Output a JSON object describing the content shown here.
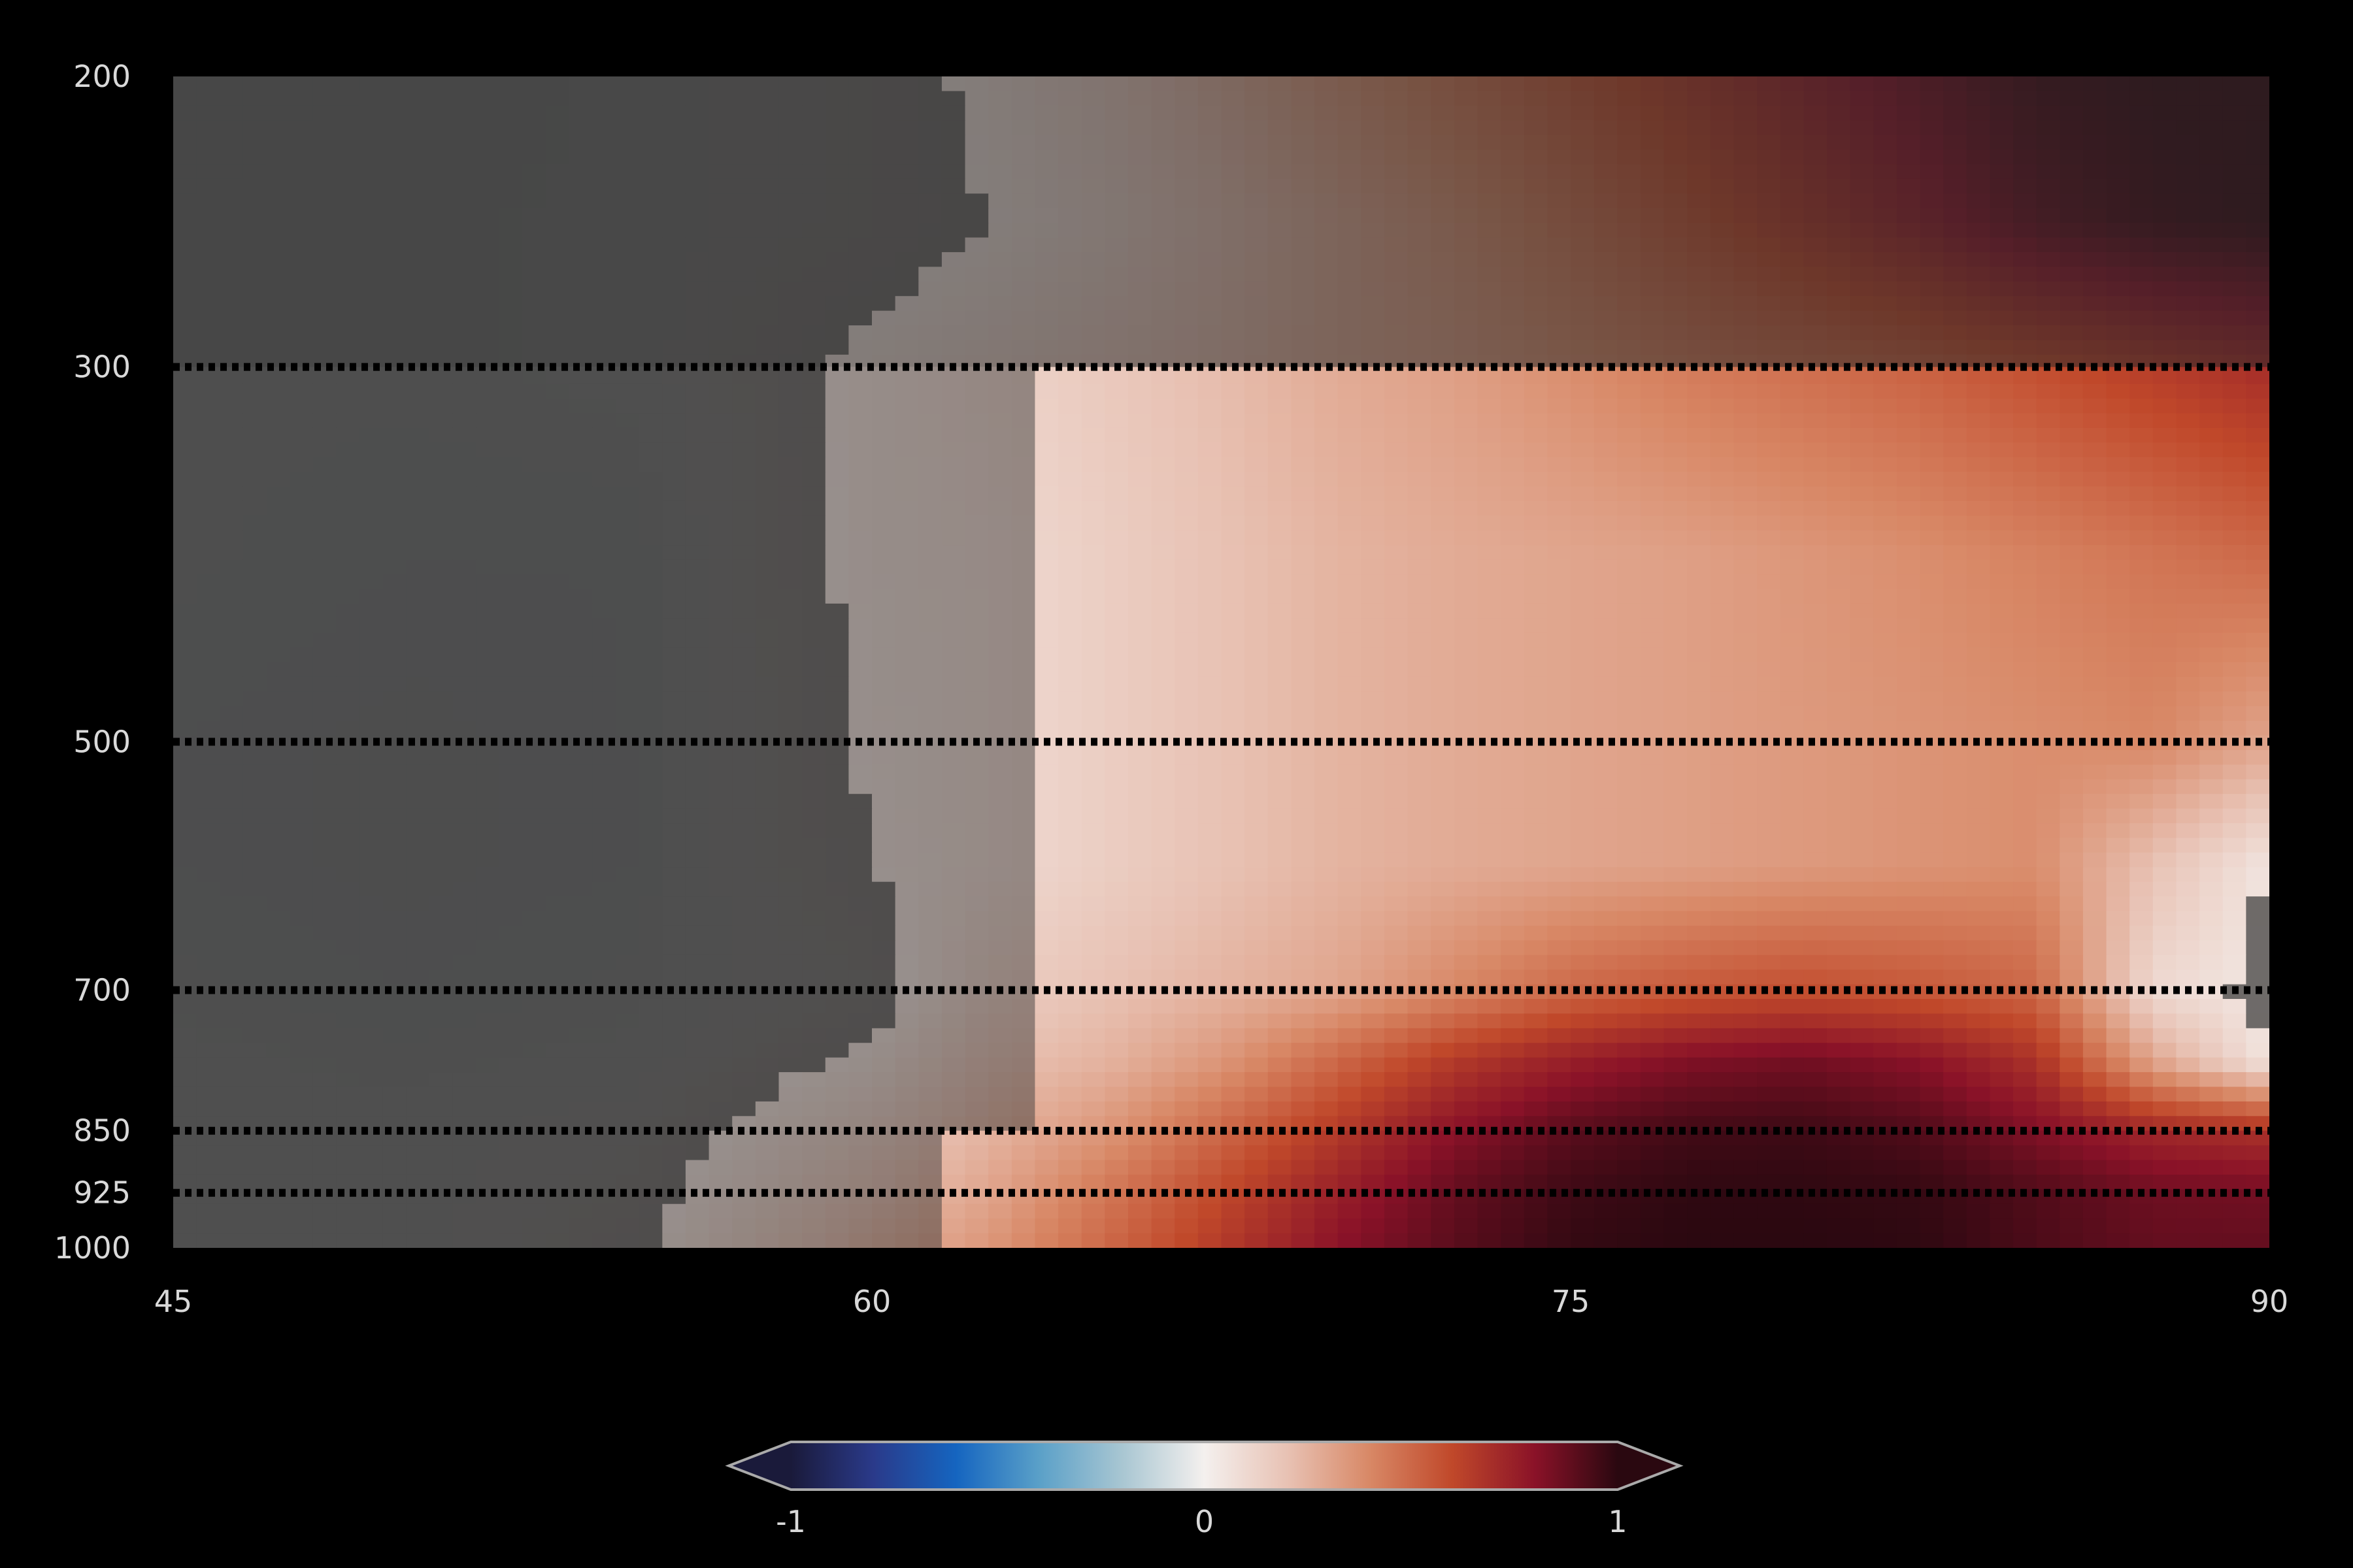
{
  "chart_data": {
    "type": "heatmap",
    "title": "",
    "xlabel": "",
    "ylabel": "",
    "x": [
      45,
      50,
      55,
      60,
      62.5,
      65,
      67.5,
      70,
      72.5,
      75,
      77.5,
      80,
      82.5,
      85,
      87.5,
      90
    ],
    "y": [
      200,
      250,
      300,
      400,
      500,
      600,
      700,
      775,
      850,
      925,
      1000
    ],
    "xlim": [
      45,
      90
    ],
    "ylim": [
      200,
      1000
    ],
    "y_axis_inverted": true,
    "x_ticks": [
      45,
      60,
      75,
      90
    ],
    "x_tick_labels": [
      "45",
      "60",
      "75",
      "90"
    ],
    "y_ticks": [
      200,
      300,
      500,
      700,
      850,
      925,
      1000
    ],
    "y_tick_labels": [
      "200",
      "300",
      "500",
      "700",
      "850",
      "925",
      "1000"
    ],
    "z": [
      [
        -0.05,
        -0.04,
        -0.02,
        0.02,
        0.08,
        0.15,
        0.25,
        0.35,
        0.45,
        0.55,
        0.65,
        0.75,
        0.85,
        0.95,
        0.98,
        0.98
      ],
      [
        -0.04,
        -0.03,
        -0.02,
        0.02,
        0.06,
        0.12,
        0.2,
        0.28,
        0.36,
        0.46,
        0.56,
        0.66,
        0.76,
        0.88,
        0.95,
        0.98
      ],
      [
        -0.03,
        -0.03,
        -0.02,
        0.08,
        0.12,
        0.17,
        0.22,
        0.28,
        0.32,
        0.38,
        0.44,
        0.48,
        0.52,
        0.58,
        0.64,
        0.7
      ],
      [
        -0.03,
        -0.04,
        -0.04,
        0.08,
        0.1,
        0.15,
        0.2,
        0.25,
        0.28,
        0.3,
        0.32,
        0.35,
        0.38,
        0.42,
        0.46,
        0.5
      ],
      [
        -0.04,
        -0.05,
        -0.04,
        0.07,
        0.1,
        0.15,
        0.2,
        0.25,
        0.28,
        0.3,
        0.32,
        0.34,
        0.36,
        0.38,
        0.4,
        0.3
      ],
      [
        -0.04,
        -0.05,
        -0.04,
        0.06,
        0.1,
        0.15,
        0.2,
        0.25,
        0.28,
        0.3,
        0.32,
        0.34,
        0.36,
        0.38,
        0.2,
        0.05
      ],
      [
        -0.03,
        -0.04,
        -0.03,
        0.02,
        0.15,
        0.2,
        0.25,
        0.3,
        0.4,
        0.5,
        0.55,
        0.58,
        0.55,
        0.5,
        0.1,
        0.04
      ],
      [
        -0.02,
        -0.03,
        -0.02,
        0.08,
        0.2,
        0.25,
        0.35,
        0.5,
        0.65,
        0.75,
        0.82,
        0.85,
        0.8,
        0.68,
        0.3,
        0.05
      ],
      [
        -0.02,
        -0.02,
        0.01,
        0.15,
        0.25,
        0.35,
        0.5,
        0.65,
        0.8,
        0.9,
        0.95,
        0.96,
        0.92,
        0.82,
        0.72,
        0.68
      ],
      [
        -0.02,
        -0.02,
        0.03,
        0.2,
        0.3,
        0.45,
        0.6,
        0.75,
        0.88,
        0.96,
        0.99,
        0.99,
        0.98,
        0.92,
        0.86,
        0.85
      ],
      [
        -0.02,
        -0.02,
        0.05,
        0.25,
        0.35,
        0.5,
        0.65,
        0.8,
        0.9,
        0.98,
        1.0,
        1.0,
        0.99,
        0.93,
        0.88,
        0.88
      ]
    ],
    "hatched_levels": [
      300,
      500,
      700,
      850,
      925
    ],
    "hatched_masks": [
      {
        "level": 300,
        "x_start": 61.5,
        "x_end": 90
      },
      {
        "level": 500,
        "x_start": 63.5,
        "x_end": 90
      },
      {
        "level": 700,
        "x_start": 63.5,
        "x_end": 86.5
      },
      {
        "level": 850,
        "x_start": 61.5,
        "x_end": 89.5
      },
      {
        "level": 925,
        "x_start": 56,
        "x_end": 90
      }
    ],
    "shaded_region": "dark overlay where value is not significant",
    "colorbar": {
      "orientation": "horizontal",
      "extend": "both",
      "vmin": -1,
      "vmax": 1,
      "ticks": [
        -1,
        0,
        1
      ],
      "tick_labels": [
        "-1",
        "0",
        "1"
      ],
      "colors": [
        "#1a1a3a",
        "#2a3a8a",
        "#1565c0",
        "#5aa0c8",
        "#a8c6d2",
        "#f4f0ee",
        "#e8c2b4",
        "#d88866",
        "#c0482a",
        "#8a1228",
        "#2a0810"
      ]
    }
  }
}
